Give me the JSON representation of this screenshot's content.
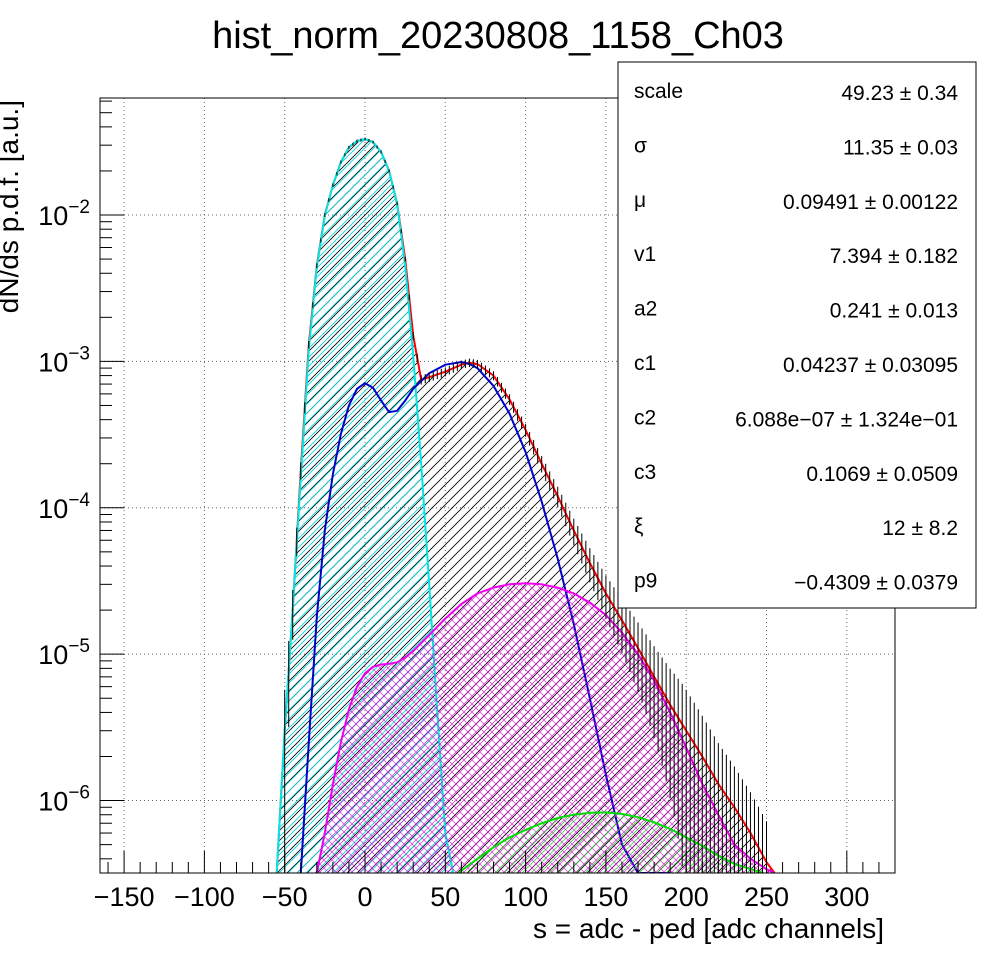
{
  "chart_data": {
    "type": "line",
    "title": "hist_norm_20230808_1158_Ch03",
    "xlabel": "s = adc - ped [adc channels]",
    "ylabel": "dN/ds p.d.f. [a.u.]",
    "xlim": [
      -165,
      330
    ],
    "ylim": [
      3.2e-07,
      0.063
    ],
    "y_scale": "log",
    "grid": true,
    "x_ticks": [
      -150,
      -100,
      -50,
      0,
      50,
      100,
      150,
      200,
      250,
      300
    ],
    "x_tick_labels": [
      "−150",
      "−100",
      "−50",
      "0",
      "50",
      "100",
      "150",
      "200",
      "250",
      "300"
    ],
    "y_tick_mantissa": "10",
    "y_ticks": [
      {
        "value": 1e-06,
        "exp": "−6"
      },
      {
        "value": 1e-05,
        "exp": "−5"
      },
      {
        "value": 0.0001,
        "exp": "−4"
      },
      {
        "value": 0.001,
        "exp": "−3"
      },
      {
        "value": 0.01,
        "exp": "−2"
      }
    ],
    "series": [
      {
        "color": "#000000",
        "style": "hatched-area",
        "x": [
          -55,
          -50,
          -45,
          -40,
          -35,
          -30,
          -25,
          -20,
          -15,
          -10,
          -5,
          0,
          5,
          10,
          15,
          20,
          25,
          30,
          35,
          40,
          50,
          60,
          65,
          70,
          80,
          90,
          100,
          110,
          120,
          130,
          140,
          150,
          160,
          170,
          180,
          190,
          200,
          210,
          220,
          230,
          240,
          250,
          255
        ],
        "y": [
          3.2e-07,
          3e-06,
          2e-05,
          0.00018,
          0.0013,
          0.0045,
          0.01,
          0.016,
          0.023,
          0.029,
          0.032,
          0.033,
          0.0315,
          0.027,
          0.02,
          0.012,
          0.005,
          0.0015,
          0.00075,
          0.00078,
          0.00085,
          0.00095,
          0.00098,
          0.00096,
          0.0008,
          0.00055,
          0.00034,
          0.0002,
          0.00012,
          7e-05,
          4.2e-05,
          2.6e-05,
          1.7e-05,
          1.1e-05,
          7e-06,
          4.5e-06,
          3e-06,
          2e-06,
          1.3e-06,
          9e-07,
          6e-07,
          3.8e-07,
          3.2e-07
        ]
      },
      {
        "color": "#ff0000",
        "style": "line",
        "x": [
          -55,
          -50,
          -45,
          -40,
          -35,
          -30,
          -25,
          -20,
          -15,
          -10,
          -5,
          0,
          5,
          10,
          15,
          20,
          25,
          30,
          35,
          40,
          50,
          60,
          65,
          70,
          80,
          90,
          100,
          110,
          120,
          130,
          140,
          150,
          160,
          170,
          180,
          190,
          200,
          210,
          220,
          230,
          240,
          250,
          255
        ],
        "y": [
          3.2e-07,
          3e-06,
          2e-05,
          0.00018,
          0.0013,
          0.0045,
          0.01,
          0.016,
          0.023,
          0.029,
          0.032,
          0.033,
          0.0315,
          0.027,
          0.02,
          0.012,
          0.005,
          0.0015,
          0.00075,
          0.00078,
          0.00085,
          0.00095,
          0.00098,
          0.00096,
          0.0008,
          0.00055,
          0.00034,
          0.0002,
          0.00012,
          7e-05,
          4.2e-05,
          2.6e-05,
          1.7e-05,
          1.1e-05,
          7e-06,
          4.5e-06,
          3e-06,
          2e-06,
          1.3e-06,
          9e-07,
          6e-07,
          3.8e-07,
          3.2e-07
        ]
      },
      {
        "color": "#00e5e5",
        "style": "hatched-area",
        "x": [
          -55,
          -50,
          -45,
          -40,
          -35,
          -30,
          -25,
          -20,
          -15,
          -10,
          -5,
          0,
          5,
          10,
          15,
          20,
          25,
          30,
          35,
          40,
          45,
          50,
          55
        ],
        "y": [
          3.2e-07,
          3e-06,
          2e-05,
          0.00016,
          0.0012,
          0.0044,
          0.0099,
          0.016,
          0.023,
          0.029,
          0.032,
          0.033,
          0.0315,
          0.027,
          0.02,
          0.012,
          0.0045,
          0.0011,
          0.0002,
          3e-05,
          4e-06,
          6e-07,
          3.2e-07
        ]
      },
      {
        "color": "#0000cc",
        "style": "line",
        "x": [
          -40,
          -35,
          -30,
          -25,
          -20,
          -15,
          -10,
          -5,
          0,
          5,
          10,
          15,
          20,
          25,
          30,
          40,
          50,
          60,
          65,
          70,
          80,
          90,
          100,
          110,
          120,
          130,
          140,
          150,
          160,
          170,
          180,
          190
        ],
        "y": [
          3.2e-07,
          2.5e-06,
          1.8e-05,
          7e-05,
          0.00017,
          0.00032,
          0.0005,
          0.00065,
          0.00071,
          0.00066,
          0.00054,
          0.00045,
          0.00046,
          0.00054,
          0.00065,
          0.00083,
          0.00095,
          0.00099,
          0.00096,
          0.0009,
          0.00068,
          0.00044,
          0.00024,
          0.00011,
          4.5e-05,
          1.6e-05,
          5e-06,
          1.5e-06,
          5e-07,
          3.2e-07,
          3.2e-07,
          3.2e-07
        ]
      },
      {
        "color": "#ee00ee",
        "style": "hatched-area",
        "x": [
          -30,
          -25,
          -20,
          -15,
          -10,
          -5,
          0,
          5,
          10,
          15,
          20,
          25,
          30,
          40,
          50,
          60,
          70,
          80,
          90,
          100,
          110,
          120,
          130,
          140,
          150,
          160,
          170,
          180,
          190,
          200,
          210,
          220,
          230,
          240,
          250,
          255
        ],
        "y": [
          3.2e-07,
          6e-07,
          1.3e-06,
          2.5e-06,
          4.2e-06,
          6e-06,
          7.4e-06,
          8.2e-06,
          8.5e-06,
          8.6e-06,
          8.8e-06,
          9.5e-06,
          1.05e-05,
          1.35e-05,
          1.75e-05,
          2.2e-05,
          2.6e-05,
          2.85e-05,
          3e-05,
          3.05e-05,
          3e-05,
          2.85e-05,
          2.6e-05,
          2.25e-05,
          1.85e-05,
          1.4e-05,
          1e-05,
          6.6e-06,
          4e-06,
          2.3e-06,
          1.3e-06,
          8e-07,
          5e-07,
          4e-07,
          3.4e-07,
          3.2e-07
        ]
      },
      {
        "color": "#00dd00",
        "style": "hatched-area",
        "x": [
          58,
          70,
          80,
          90,
          100,
          110,
          120,
          130,
          140,
          150,
          160,
          170,
          180,
          190,
          200,
          210,
          220,
          230,
          240,
          248
        ],
        "y": [
          3.2e-07,
          4e-07,
          4.8e-07,
          5.6e-07,
          6.3e-07,
          7e-07,
          7.6e-07,
          8e-07,
          8.25e-07,
          8.3e-07,
          8.1e-07,
          7.7e-07,
          7.1e-07,
          6.4e-07,
          5.6e-07,
          4.9e-07,
          4.2e-07,
          3.7e-07,
          3.4e-07,
          3.2e-07
        ]
      }
    ]
  },
  "stats_box": {
    "rows": [
      {
        "name": "scale",
        "value": "49.23 ± 0.34"
      },
      {
        "name": "σ",
        "value": "11.35 ± 0.03"
      },
      {
        "name": "μ",
        "value": "0.09491 ± 0.00122"
      },
      {
        "name": "v1",
        "value": "7.394 ± 0.182"
      },
      {
        "name": "a2",
        "value": "0.241 ± 0.013"
      },
      {
        "name": "c1",
        "value": "0.04237 ± 0.03095"
      },
      {
        "name": "c2",
        "value": "6.088e−07 ± 1.324e−01"
      },
      {
        "name": "c3",
        "value": "0.1069 ± 0.0509"
      },
      {
        "name": "ξ",
        "value": "12 ± 8.2"
      },
      {
        "name": "p9",
        "value": "−0.4309 ± 0.0379"
      }
    ]
  }
}
